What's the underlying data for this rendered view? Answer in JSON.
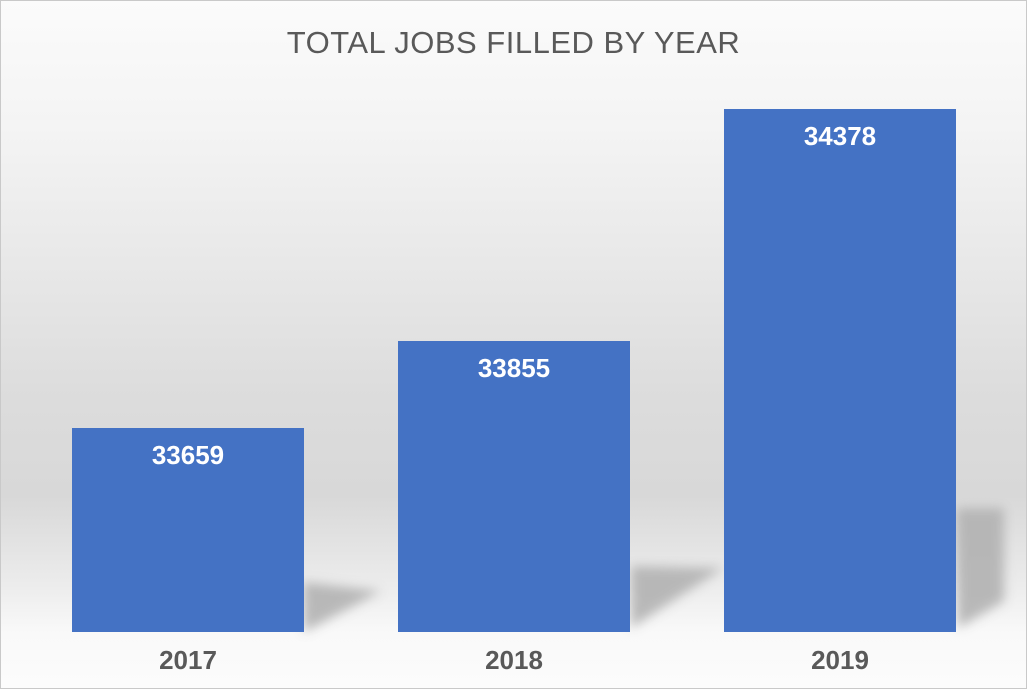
{
  "chart_data": {
    "type": "bar",
    "title": "TOTAL JOBS FILLED BY YEAR",
    "categories": [
      "2017",
      "2018",
      "2019"
    ],
    "values": [
      33659,
      33855,
      34378
    ],
    "data_labels": [
      "33659",
      "33855",
      "34378"
    ],
    "series": [
      {
        "name": "Total jobs filled",
        "values": [
          33659,
          33855,
          34378
        ]
      }
    ],
    "xlabel": "",
    "ylabel": "",
    "ylim": [
      33200,
      34400
    ],
    "grid": false,
    "legend": false,
    "axes_visible": false,
    "data_label_position": "inside-end",
    "bar_color": "#4472C4",
    "data_label_color": "#FFFFFF",
    "axis_text_color": "#595959",
    "title_color": "#595959",
    "shadow_color": "#B2B2B2"
  }
}
